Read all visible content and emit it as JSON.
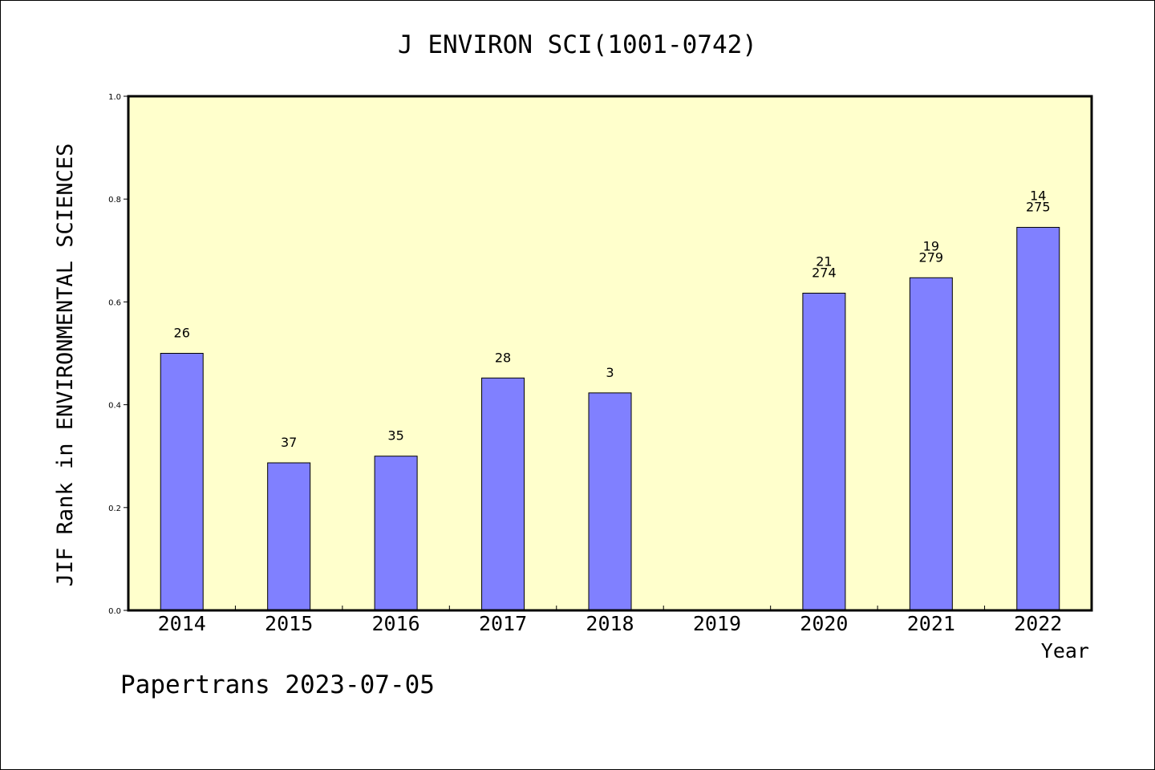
{
  "chart_data": {
    "type": "bar",
    "title": "J ENVIRON SCI(1001-0742)",
    "ylabel": "JIF Rank in ENVIRONMENTAL SCIENCES",
    "xlabel": "Year",
    "ylim": [
      0,
      1.0
    ],
    "yticks": [
      "0.0",
      "0.2",
      "0.4",
      "0.6",
      "0.8",
      "1.0"
    ],
    "categories": [
      "2014",
      "2015",
      "2016",
      "2017",
      "2018",
      "2019",
      "2020",
      "2021",
      "2022"
    ],
    "values": [
      0.5,
      0.287,
      0.3,
      0.452,
      0.423,
      null,
      0.617,
      0.647,
      0.745
    ],
    "labels": [
      [
        "26"
      ],
      [
        "37"
      ],
      [
        "35"
      ],
      [
        "28"
      ],
      [
        "3"
      ],
      [],
      [
        "21",
        "274"
      ],
      [
        "19",
        "279"
      ],
      [
        "14",
        "275"
      ]
    ],
    "grid": false,
    "colors": {
      "plot_bg": "#ffffcc",
      "bar": "#8080ff",
      "bar_stroke": "#000000"
    }
  },
  "footer": {
    "text": "Papertrans 2023-07-05"
  }
}
